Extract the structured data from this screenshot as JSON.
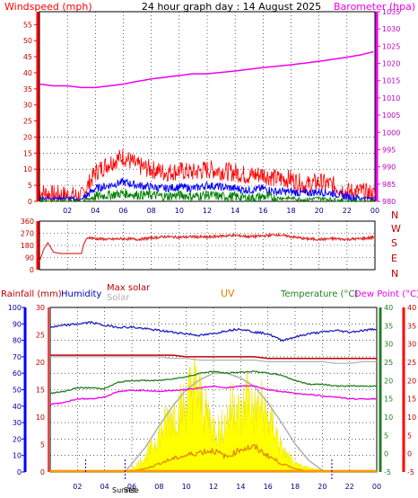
{
  "colors": {
    "wind": "#ff0000",
    "gust": "#ff0000",
    "avgwind": "#0000ff",
    "windlow": "#008000",
    "baro": "#ee00ee",
    "dir": "#e03030",
    "humidity": "#2020c0",
    "temperature": "#208020",
    "dewpoint": "#ee00ee",
    "maxsolar": "#b0b0b0",
    "solar": "#ffff00",
    "uv": "#e08000",
    "rain": "#0000ff",
    "maxsolarlabel": "#c00000",
    "title": "#000000"
  },
  "header": {
    "title": "24 hour graph day : 14 August 2025"
  },
  "chart_data": [
    {
      "type": "line",
      "title": "24 hour graph day : 14 August 2025",
      "ylabel": "Windspeed (mph)",
      "ylabel_right": "Barometer (hpa)",
      "ylim": [
        0,
        59
      ],
      "y_ticks": [
        0,
        5,
        10,
        15,
        20,
        25,
        30,
        35,
        40,
        45,
        50,
        55
      ],
      "ylim_right": [
        980,
        1035
      ],
      "y_ticks_right": [
        980,
        985,
        990,
        995,
        1000,
        1005,
        1010,
        1015,
        1020,
        1025,
        1030,
        1035
      ],
      "x_tick_labels": [
        "02",
        "04",
        "06",
        "08",
        "10",
        "12",
        "14",
        "16",
        "18",
        "20",
        "22",
        "00"
      ],
      "xlim_hours": [
        0,
        24
      ],
      "series": [
        {
          "name": "Barometer",
          "axis": "right",
          "x": [
            0,
            1,
            2,
            3,
            4,
            5,
            6,
            7,
            8,
            9,
            10,
            11,
            12,
            13,
            14,
            15,
            16,
            17,
            18,
            19,
            20,
            21,
            22,
            23,
            24
          ],
          "values": [
            1014,
            1013.5,
            1013.5,
            1013,
            1013,
            1013.5,
            1014,
            1014.8,
            1015.5,
            1016,
            1016.5,
            1017,
            1017,
            1017.4,
            1017.8,
            1018.3,
            1018.8,
            1019.2,
            1019.6,
            1020.1,
            1020.6,
            1021.2,
            1021.8,
            1022.5,
            1023.5
          ]
        },
        {
          "name": "Gust",
          "axis": "left",
          "x": [
            0,
            1,
            2,
            3,
            4,
            5,
            6,
            7,
            8,
            9,
            10,
            11,
            12,
            13,
            14,
            15,
            16,
            17,
            18,
            19,
            20,
            21,
            22,
            23,
            24
          ],
          "values": [
            3,
            2,
            2,
            1.5,
            9,
            12,
            14,
            11,
            10,
            9,
            9.5,
            9,
            10,
            9.5,
            9,
            8,
            8.5,
            7,
            7,
            5,
            6,
            5,
            3,
            3,
            2
          ]
        },
        {
          "name": "Average wind",
          "axis": "left",
          "x": [
            0,
            1,
            2,
            3,
            4,
            5,
            6,
            7,
            8,
            9,
            10,
            11,
            12,
            13,
            14,
            15,
            16,
            17,
            18,
            19,
            20,
            21,
            22,
            23,
            24
          ],
          "values": [
            1,
            1,
            1,
            0.5,
            4,
            5,
            6,
            5,
            4.5,
            4,
            4.5,
            4,
            5,
            4.5,
            4,
            3.5,
            4,
            3,
            3,
            2.5,
            3,
            2.5,
            1.5,
            1,
            1
          ]
        },
        {
          "name": "Low wind",
          "axis": "left",
          "x": [
            0,
            1,
            2,
            3,
            4,
            5,
            6,
            7,
            8,
            9,
            10,
            11,
            12,
            13,
            14,
            15,
            16,
            17,
            18,
            19,
            20,
            21,
            22,
            23,
            24
          ],
          "values": [
            0,
            0,
            0,
            0,
            1.5,
            2,
            2.5,
            2,
            2,
            1.5,
            2,
            1.5,
            2,
            1.5,
            1.5,
            1,
            1.5,
            1,
            1,
            0.5,
            1,
            0.5,
            0,
            0,
            0
          ]
        }
      ]
    },
    {
      "type": "line",
      "ylabel": "",
      "ylim": [
        0,
        360
      ],
      "y_ticks": [
        0,
        90,
        180,
        270,
        360
      ],
      "y_tick_labels": [
        "0",
        "90",
        "180",
        "270",
        "360"
      ],
      "y_tick_labels_right": [
        "N",
        "W",
        "S",
        "E",
        "N"
      ],
      "xlim_hours": [
        0,
        24
      ],
      "series": [
        {
          "name": "Wind direction",
          "x": [
            0,
            0.3,
            0.6,
            1,
            1.5,
            2,
            2.5,
            3,
            3.2,
            3.5,
            4,
            5,
            6,
            7,
            8,
            9,
            10,
            11,
            12,
            13,
            14,
            15,
            16,
            17,
            18,
            19,
            20,
            21,
            22,
            23,
            24
          ],
          "values": [
            60,
            150,
            200,
            130,
            120,
            120,
            120,
            120,
            200,
            240,
            230,
            225,
            230,
            225,
            235,
            245,
            240,
            245,
            240,
            250,
            255,
            245,
            250,
            260,
            245,
            230,
            225,
            230,
            225,
            230,
            240
          ]
        }
      ]
    },
    {
      "type": "line",
      "legend": [
        "Rainfall (mm)",
        "Humidity",
        "Max solar",
        "Solar",
        "UV",
        "Temperature (°C)",
        "Dew Point (°C)"
      ],
      "axis_label_left": "Rainfall (mm)",
      "axis_label_humidity": "Humidity",
      "axis_label_right": "Temperature (°C)",
      "axis_label_right2": "Dew Point (°C)",
      "humidity_ticks": [
        0,
        10,
        20,
        30,
        40,
        50,
        60,
        70,
        80,
        90,
        100
      ],
      "rain_ticks": [
        0,
        5,
        10,
        15,
        20,
        25,
        30
      ],
      "temperature_ticks": [
        -5,
        0,
        5,
        10,
        15,
        20,
        25,
        30,
        35,
        40
      ],
      "dewpoint_ticks": [
        -5,
        0,
        5,
        10,
        15,
        20,
        25,
        30,
        35,
        40
      ],
      "x_tick_labels": [
        "02",
        "04",
        "06",
        "08",
        "10",
        "12",
        "14",
        "16",
        "18",
        "20",
        "22",
        "00"
      ],
      "annotations": [
        "Sunrise",
        "Set"
      ],
      "sunrise_hour": 5.5,
      "sunset_hour": 20.7,
      "xlim_hours": [
        0,
        24
      ],
      "series": [
        {
          "name": "Humidity",
          "x": [
            0,
            1,
            2,
            3,
            4,
            5,
            6,
            7,
            8,
            9,
            10,
            11,
            12,
            13,
            14,
            15,
            16,
            17,
            18,
            19,
            20,
            21,
            22,
            23,
            24
          ],
          "values": [
            88,
            89,
            90,
            91,
            89,
            88,
            88,
            87,
            86,
            85,
            84,
            83,
            84,
            86,
            87,
            85,
            84,
            80,
            82,
            84,
            85,
            86,
            85,
            86,
            87
          ]
        },
        {
          "name": "Max solar",
          "x": [
            0,
            1,
            2,
            3,
            4,
            5,
            6,
            7,
            8,
            9,
            10,
            11,
            12,
            13,
            14,
            15,
            16,
            17,
            18,
            19,
            20,
            21,
            22,
            23,
            24
          ],
          "values": [
            70,
            70,
            70,
            70,
            70,
            70,
            70,
            70,
            70,
            69,
            69,
            68,
            68,
            68,
            68,
            68,
            67,
            67,
            67,
            67,
            67,
            66,
            66,
            67,
            67
          ]
        },
        {
          "name": "Max solar (red)",
          "x": [
            0,
            1,
            2,
            3,
            4,
            5,
            6,
            7,
            8,
            9,
            10,
            11,
            12,
            13,
            14,
            15,
            16,
            17,
            18,
            19,
            20,
            21,
            22,
            23,
            24
          ],
          "values": [
            71,
            71,
            71,
            71,
            71,
            71,
            71,
            71,
            71,
            71,
            70,
            70,
            70,
            70,
            70,
            70,
            69,
            69,
            69,
            69,
            69,
            69,
            69,
            69,
            69
          ]
        },
        {
          "name": "Temperature (°C)",
          "x": [
            0,
            1,
            2,
            3,
            4,
            5,
            6,
            7,
            8,
            9,
            10,
            11,
            12,
            13,
            14,
            15,
            16,
            17,
            18,
            19,
            20,
            21,
            22,
            23,
            24
          ],
          "values": [
            16.5,
            17,
            18,
            18,
            17.8,
            19.5,
            20,
            20,
            20,
            20.5,
            21,
            22,
            22.5,
            22,
            22.3,
            22.5,
            22,
            21.5,
            20,
            19,
            19,
            18.5,
            18.5,
            18.5,
            18.5
          ]
        },
        {
          "name": "Dew Point (°C)",
          "x": [
            0,
            1,
            2,
            3,
            4,
            5,
            6,
            7,
            8,
            9,
            10,
            11,
            12,
            13,
            14,
            15,
            16,
            17,
            18,
            19,
            20,
            21,
            22,
            23,
            24
          ],
          "values": [
            13.5,
            14,
            15,
            15,
            15.5,
            17,
            17.3,
            17.3,
            17,
            17.3,
            17.5,
            18,
            18.5,
            18,
            18.5,
            18.5,
            17.5,
            17,
            16.5,
            16.2,
            15.8,
            15.5,
            15,
            15,
            15
          ]
        },
        {
          "name": "Solar",
          "x": [
            5.5,
            6,
            7,
            8,
            9,
            10,
            10.5,
            11,
            11.5,
            12,
            12.5,
            13,
            13.5,
            14,
            14.5,
            15,
            15.5,
            16,
            16.5,
            17,
            17.5,
            18,
            19,
            20,
            20.7
          ],
          "values": [
            0,
            2,
            10,
            25,
            40,
            45,
            60,
            50,
            40,
            30,
            28,
            35,
            50,
            35,
            55,
            40,
            45,
            35,
            30,
            15,
            10,
            5,
            3,
            1,
            0
          ]
        },
        {
          "name": "Max solar curve",
          "x": [
            5.5,
            6,
            7,
            8,
            9,
            10,
            11,
            12,
            13,
            14,
            15,
            16,
            17,
            18,
            19,
            20,
            20.7
          ],
          "values": [
            0,
            5,
            15,
            28,
            40,
            50,
            56,
            60,
            60,
            57,
            52,
            42,
            30,
            17,
            7,
            1,
            0
          ]
        },
        {
          "name": "UV",
          "x": [
            5.5,
            7,
            8,
            9,
            10,
            11,
            12,
            13,
            14,
            15,
            16,
            17,
            18,
            19,
            20,
            20.7
          ],
          "values": [
            0,
            2,
            5,
            8,
            10,
            12,
            13,
            9,
            14,
            15,
            10,
            5,
            2,
            0.5,
            0,
            0
          ]
        },
        {
          "name": "Rainfall (mm)",
          "x": [
            0,
            24
          ],
          "values": [
            0,
            0
          ]
        }
      ]
    }
  ]
}
